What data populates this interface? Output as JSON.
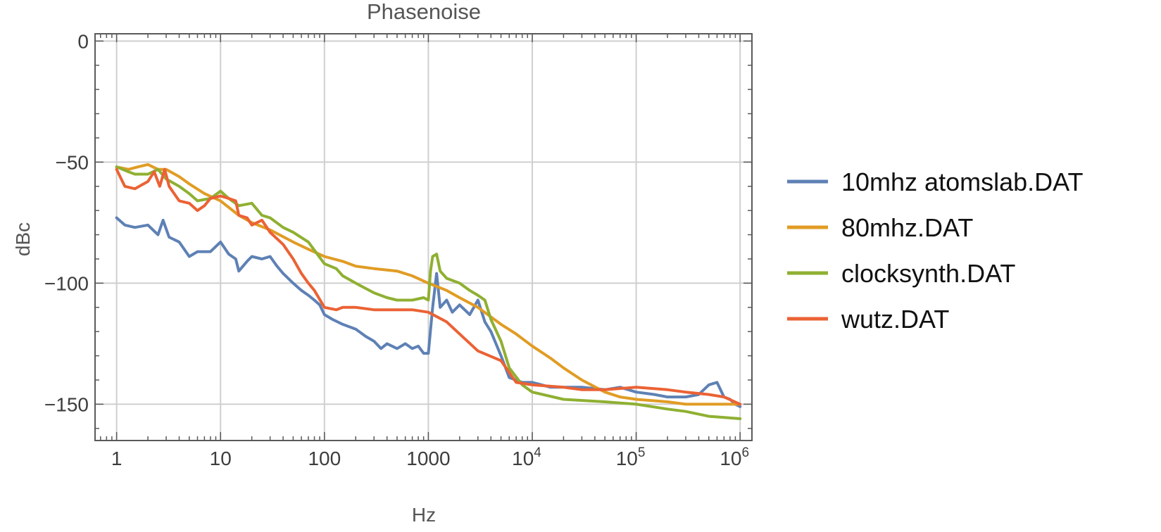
{
  "chart_data": {
    "type": "line",
    "title": "Phasenoise",
    "xlabel": "Hz",
    "ylabel": "dBc",
    "x_scale": "log",
    "xlim": [
      0.62,
      1300000
    ],
    "ylim": [
      -165,
      3
    ],
    "x_ticks": [
      {
        "value": 1,
        "base": "1",
        "exp": ""
      },
      {
        "value": 10,
        "base": "10",
        "exp": ""
      },
      {
        "value": 100,
        "base": "100",
        "exp": ""
      },
      {
        "value": 1000,
        "base": "1000",
        "exp": ""
      },
      {
        "value": 10000,
        "base": "10",
        "exp": "4"
      },
      {
        "value": 100000,
        "base": "10",
        "exp": "5"
      },
      {
        "value": 1000000,
        "base": "10",
        "exp": "6"
      }
    ],
    "y_ticks": [
      {
        "value": 0,
        "label": "0"
      },
      {
        "value": -50,
        "label": "−50"
      },
      {
        "value": -100,
        "label": "−100"
      },
      {
        "value": -150,
        "label": "−150"
      }
    ],
    "grid": true,
    "legend_position": "right",
    "series": [
      {
        "name": "10mhz atomslab.DAT",
        "color": "#5e81b5",
        "points": [
          [
            1,
            -73
          ],
          [
            1.2,
            -76
          ],
          [
            1.5,
            -77
          ],
          [
            2,
            -76
          ],
          [
            2.5,
            -80
          ],
          [
            2.8,
            -74
          ],
          [
            3.2,
            -81
          ],
          [
            4,
            -83
          ],
          [
            5,
            -89
          ],
          [
            6,
            -87
          ],
          [
            8,
            -87
          ],
          [
            10,
            -83
          ],
          [
            12,
            -88
          ],
          [
            14,
            -90
          ],
          [
            15,
            -95
          ],
          [
            18,
            -91
          ],
          [
            20,
            -89
          ],
          [
            25,
            -90
          ],
          [
            30,
            -89
          ],
          [
            35,
            -93
          ],
          [
            40,
            -96
          ],
          [
            50,
            -100
          ],
          [
            60,
            -103
          ],
          [
            70,
            -105
          ],
          [
            80,
            -107
          ],
          [
            90,
            -109
          ],
          [
            100,
            -113
          ],
          [
            120,
            -115
          ],
          [
            150,
            -117
          ],
          [
            200,
            -119
          ],
          [
            250,
            -122
          ],
          [
            300,
            -124
          ],
          [
            350,
            -127
          ],
          [
            400,
            -125
          ],
          [
            500,
            -127
          ],
          [
            600,
            -125
          ],
          [
            700,
            -127
          ],
          [
            800,
            -126
          ],
          [
            900,
            -129
          ],
          [
            1000,
            -129
          ],
          [
            1100,
            -110
          ],
          [
            1200,
            -96
          ],
          [
            1300,
            -110
          ],
          [
            1500,
            -107
          ],
          [
            1700,
            -112
          ],
          [
            2000,
            -109
          ],
          [
            2500,
            -113
          ],
          [
            3000,
            -107
          ],
          [
            3500,
            -116
          ],
          [
            4000,
            -120
          ],
          [
            5000,
            -130
          ],
          [
            6000,
            -139
          ],
          [
            8000,
            -141
          ],
          [
            10000,
            -141
          ],
          [
            15000,
            -143
          ],
          [
            20000,
            -143
          ],
          [
            30000,
            -143
          ],
          [
            50000,
            -144
          ],
          [
            70000,
            -143
          ],
          [
            100000,
            -145
          ],
          [
            150000,
            -146
          ],
          [
            200000,
            -147
          ],
          [
            300000,
            -147
          ],
          [
            400000,
            -146
          ],
          [
            500000,
            -142
          ],
          [
            600000,
            -141
          ],
          [
            700000,
            -147
          ],
          [
            800000,
            -148
          ],
          [
            900000,
            -150
          ],
          [
            1000000,
            -151
          ]
        ]
      },
      {
        "name": "80mhz.DAT",
        "color": "#e19c24",
        "points": [
          [
            1,
            -52
          ],
          [
            1.3,
            -53
          ],
          [
            1.6,
            -52
          ],
          [
            2,
            -51
          ],
          [
            2.5,
            -53
          ],
          [
            3,
            -53
          ],
          [
            4,
            -56
          ],
          [
            5,
            -59
          ],
          [
            7,
            -63
          ],
          [
            10,
            -66
          ],
          [
            15,
            -72
          ],
          [
            20,
            -75
          ],
          [
            30,
            -78
          ],
          [
            50,
            -83
          ],
          [
            70,
            -86
          ],
          [
            100,
            -89
          ],
          [
            150,
            -91
          ],
          [
            200,
            -93
          ],
          [
            300,
            -94
          ],
          [
            500,
            -95
          ],
          [
            700,
            -97
          ],
          [
            1000,
            -100
          ],
          [
            1500,
            -103
          ],
          [
            2000,
            -106
          ],
          [
            3000,
            -110
          ],
          [
            5000,
            -117
          ],
          [
            7000,
            -121
          ],
          [
            10000,
            -126
          ],
          [
            15000,
            -131
          ],
          [
            20000,
            -135
          ],
          [
            30000,
            -140
          ],
          [
            50000,
            -145
          ],
          [
            70000,
            -147
          ],
          [
            100000,
            -148
          ],
          [
            200000,
            -149
          ],
          [
            300000,
            -150
          ],
          [
            500000,
            -150
          ],
          [
            1000000,
            -150
          ]
        ]
      },
      {
        "name": "clocksynth.DAT",
        "color": "#8fb032",
        "points": [
          [
            1,
            -52
          ],
          [
            1.3,
            -54
          ],
          [
            1.5,
            -55
          ],
          [
            2,
            -55
          ],
          [
            2.5,
            -53
          ],
          [
            3,
            -57
          ],
          [
            4,
            -60
          ],
          [
            5,
            -63
          ],
          [
            6,
            -66
          ],
          [
            8,
            -65
          ],
          [
            10,
            -62
          ],
          [
            12,
            -65
          ],
          [
            15,
            -68
          ],
          [
            20,
            -67
          ],
          [
            25,
            -72
          ],
          [
            30,
            -73
          ],
          [
            40,
            -77
          ],
          [
            50,
            -79
          ],
          [
            70,
            -83
          ],
          [
            100,
            -92
          ],
          [
            130,
            -94
          ],
          [
            150,
            -97
          ],
          [
            200,
            -100
          ],
          [
            300,
            -104
          ],
          [
            400,
            -106
          ],
          [
            500,
            -107
          ],
          [
            700,
            -107
          ],
          [
            900,
            -106
          ],
          [
            1000,
            -107
          ],
          [
            1050,
            -95
          ],
          [
            1100,
            -89
          ],
          [
            1200,
            -88
          ],
          [
            1300,
            -95
          ],
          [
            1500,
            -98
          ],
          [
            2000,
            -100
          ],
          [
            2500,
            -103
          ],
          [
            3000,
            -105
          ],
          [
            3500,
            -107
          ],
          [
            4000,
            -115
          ],
          [
            5000,
            -124
          ],
          [
            6000,
            -135
          ],
          [
            8000,
            -142
          ],
          [
            10000,
            -145
          ],
          [
            20000,
            -148
          ],
          [
            50000,
            -149
          ],
          [
            100000,
            -150
          ],
          [
            200000,
            -152
          ],
          [
            300000,
            -153
          ],
          [
            500000,
            -155
          ],
          [
            1000000,
            -156
          ]
        ]
      },
      {
        "name": "wutz.DAT",
        "color": "#eb6235",
        "points": [
          [
            1,
            -53
          ],
          [
            1.2,
            -60
          ],
          [
            1.5,
            -61
          ],
          [
            2,
            -58
          ],
          [
            2.3,
            -54
          ],
          [
            2.6,
            -60
          ],
          [
            2.9,
            -53
          ],
          [
            3.2,
            -60
          ],
          [
            4,
            -66
          ],
          [
            5,
            -67
          ],
          [
            6,
            -70
          ],
          [
            7,
            -68
          ],
          [
            8,
            -65
          ],
          [
            10,
            -64
          ],
          [
            12,
            -65
          ],
          [
            14,
            -66
          ],
          [
            15,
            -72
          ],
          [
            18,
            -73
          ],
          [
            20,
            -76
          ],
          [
            25,
            -74
          ],
          [
            30,
            -79
          ],
          [
            40,
            -84
          ],
          [
            50,
            -90
          ],
          [
            60,
            -96
          ],
          [
            70,
            -100
          ],
          [
            80,
            -103
          ],
          [
            100,
            -110
          ],
          [
            130,
            -111
          ],
          [
            150,
            -110
          ],
          [
            200,
            -110
          ],
          [
            300,
            -111
          ],
          [
            500,
            -111
          ],
          [
            700,
            -111
          ],
          [
            1000,
            -112
          ],
          [
            1500,
            -116
          ],
          [
            2000,
            -121
          ],
          [
            3000,
            -128
          ],
          [
            5000,
            -132
          ],
          [
            7000,
            -141
          ],
          [
            10000,
            -142
          ],
          [
            20000,
            -143
          ],
          [
            30000,
            -144
          ],
          [
            50000,
            -144
          ],
          [
            100000,
            -143
          ],
          [
            200000,
            -144
          ],
          [
            300000,
            -145
          ],
          [
            500000,
            -146
          ],
          [
            700000,
            -147
          ],
          [
            1000000,
            -150
          ]
        ]
      }
    ]
  }
}
